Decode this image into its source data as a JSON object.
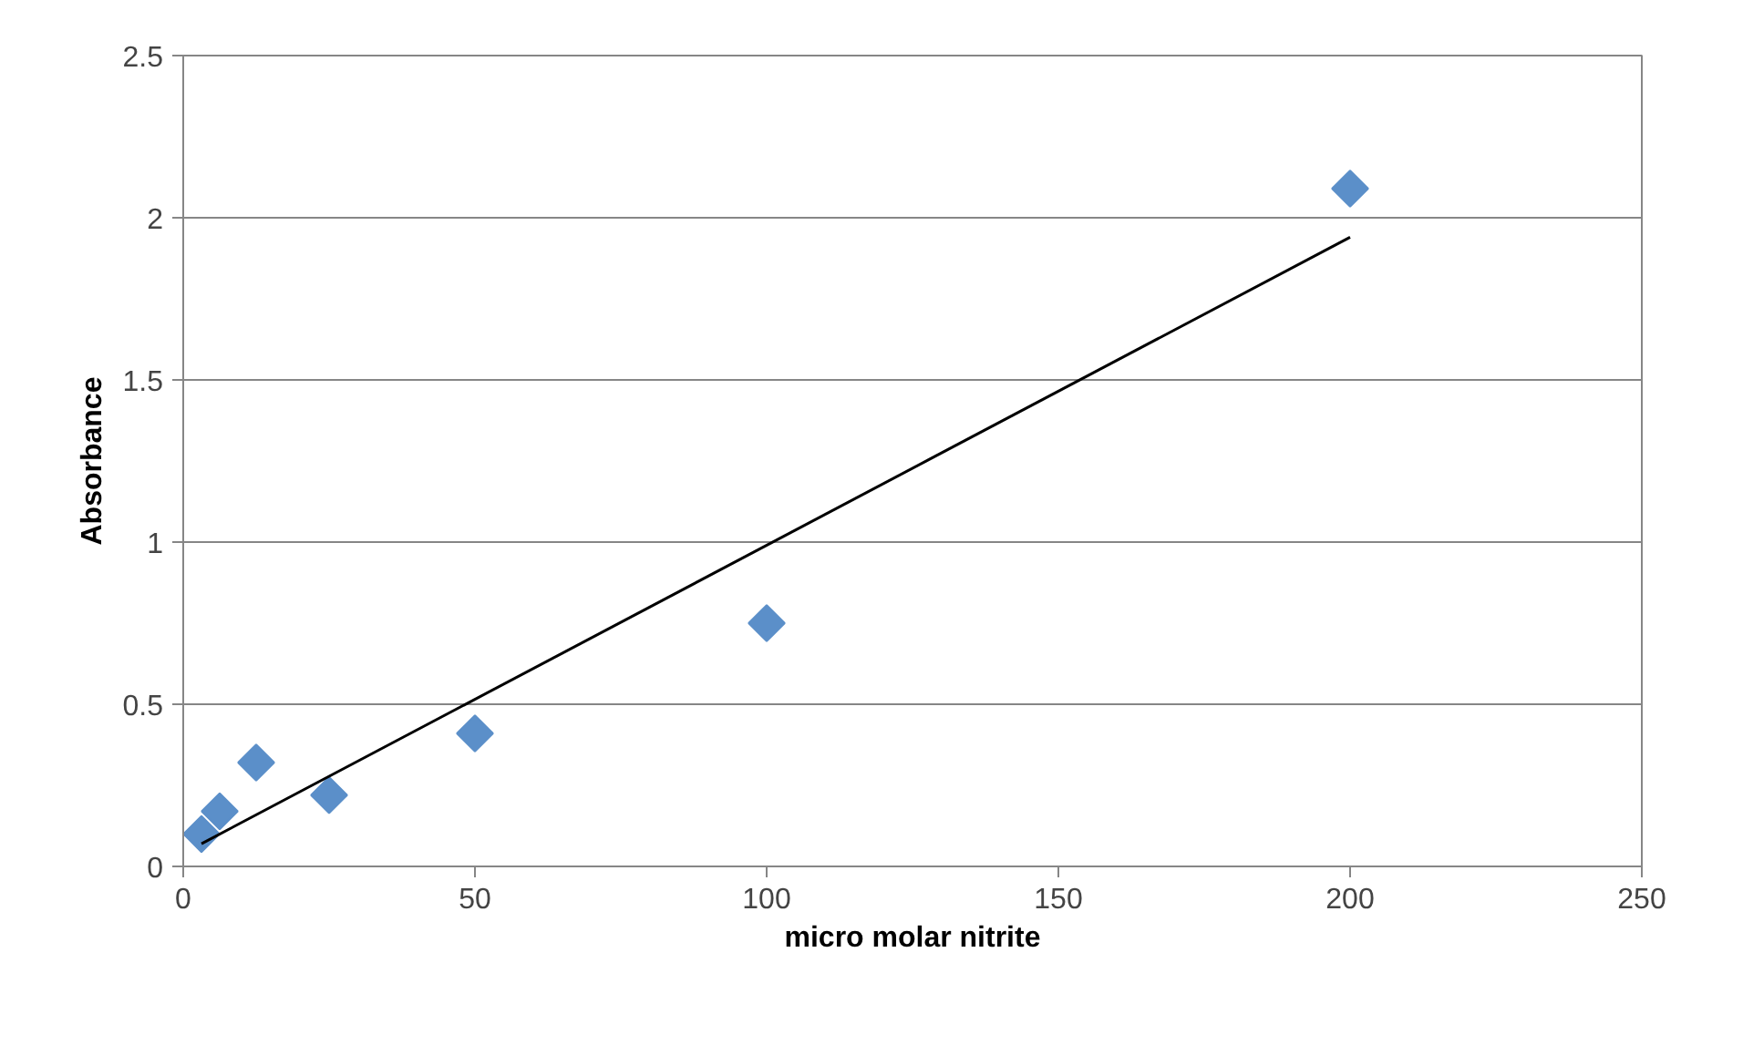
{
  "chart_data": {
    "type": "scatter",
    "xlabel": "micro molar nitrite",
    "ylabel": "Absorbance",
    "xlim": [
      0,
      250
    ],
    "xticks": [
      0,
      50,
      100,
      150,
      200,
      250
    ],
    "ylim": [
      0,
      2.5
    ],
    "yticks": [
      0,
      0.5,
      1,
      1.5,
      2,
      2.5
    ],
    "grid": "y",
    "marker": "diamond",
    "series": [
      {
        "color": "#5b8fc9",
        "x": [
          3.125,
          6.25,
          12.5,
          25,
          50,
          100,
          200
        ],
        "values": [
          0.1,
          0.17,
          0.32,
          0.22,
          0.41,
          0.75,
          2.09
        ]
      },
      {
        "type": "line",
        "color": "#000000",
        "marker": "none",
        "line_style": "solid",
        "x": [
          3.125,
          200
        ],
        "values": [
          0.07,
          1.94
        ]
      }
    ]
  }
}
